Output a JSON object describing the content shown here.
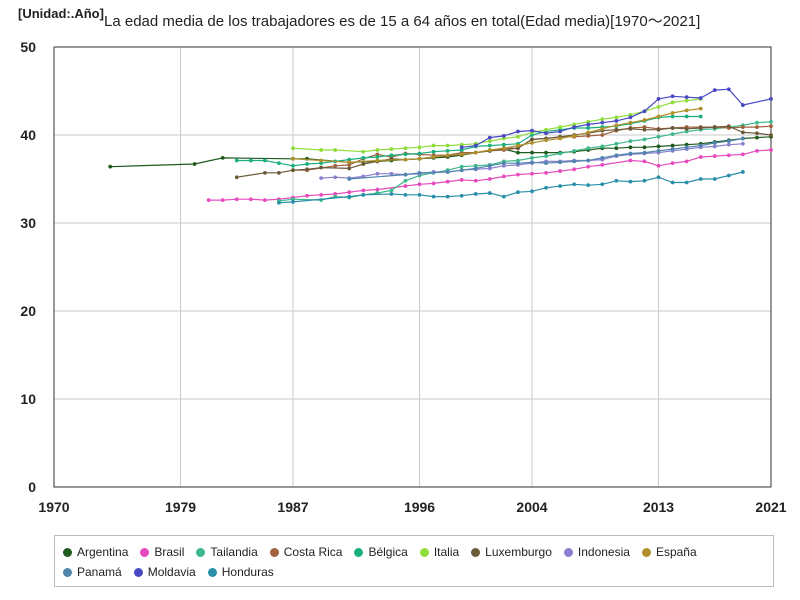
{
  "chart_data": {
    "type": "line",
    "title": "La edad media de los trabajadores es de 15 a 64 años en total(Edad media)[1970～2021]",
    "unit_label": "[Unidad:.Año]",
    "xlabel": "",
    "ylabel": "",
    "xlim": [
      1970,
      2021
    ],
    "ylim": [
      0,
      50
    ],
    "x_ticks": [
      "1970",
      "1979",
      "1987",
      "1996",
      "2004",
      "2013",
      "2021"
    ],
    "y_ticks": [
      "0",
      "10",
      "20",
      "30",
      "40",
      "50"
    ],
    "grid": true,
    "legend_position": "bottom",
    "series": [
      {
        "name": "Argentina",
        "color": "#1f5a1f",
        "x": [
          1974,
          1980,
          1982,
          1987,
          1988,
          1991,
          1993,
          1994,
          1996,
          1997,
          1998,
          1999,
          2000,
          2001,
          2002,
          2003,
          2004,
          2005,
          2006,
          2007,
          2008,
          2009,
          2010,
          2011,
          2012,
          2013,
          2014,
          2015,
          2016,
          2017,
          2018,
          2019,
          2020,
          2021
        ],
        "y": [
          36.4,
          36.7,
          37.4,
          37.3,
          37.3,
          36.9,
          37.0,
          37.1,
          37.3,
          37.4,
          37.5,
          37.7,
          38.0,
          38.2,
          38.4,
          38.0,
          38.0,
          38.0,
          38.0,
          38.1,
          38.3,
          38.5,
          38.5,
          38.6,
          38.6,
          38.7,
          38.8,
          38.9,
          39.0,
          39.2,
          39.4,
          39.6,
          39.7,
          39.8
        ]
      },
      {
        "name": "Brasil",
        "color": "#e64bbd",
        "x": [
          1981,
          1982,
          1983,
          1984,
          1985,
          1986,
          1987,
          1988,
          1989,
          1990,
          1991,
          1992,
          1993,
          1995,
          1996,
          1997,
          1998,
          1999,
          2000,
          2001,
          2002,
          2003,
          2004,
          2005,
          2006,
          2007,
          2008,
          2009,
          2011,
          2012,
          2013,
          2014,
          2015,
          2016,
          2017,
          2018,
          2019,
          2020,
          2021
        ],
        "y": [
          32.6,
          32.6,
          32.7,
          32.7,
          32.6,
          32.7,
          32.9,
          33.1,
          33.2,
          33.3,
          33.5,
          33.7,
          33.8,
          34.2,
          34.4,
          34.5,
          34.7,
          34.9,
          34.8,
          35.0,
          35.3,
          35.5,
          35.6,
          35.7,
          35.9,
          36.1,
          36.4,
          36.6,
          37.1,
          37.0,
          36.5,
          36.8,
          37.0,
          37.5,
          37.6,
          37.7,
          37.8,
          38.2,
          38.3
        ]
      },
      {
        "name": "Tailandia",
        "color": "#3cb88a",
        "x": [
          1986,
          1987,
          1989,
          1990,
          1991,
          1992,
          1993,
          1994,
          1995,
          1996,
          1997,
          1998,
          1999,
          2000,
          2001,
          2002,
          2003,
          2004,
          2005,
          2006,
          2007,
          2008,
          2009,
          2010,
          2011,
          2012,
          2013,
          2014,
          2015,
          2016,
          2017,
          2018,
          2019,
          2020,
          2021
        ],
        "y": [
          32.5,
          32.7,
          32.6,
          33.0,
          32.9,
          33.2,
          33.4,
          33.7,
          34.8,
          35.4,
          35.7,
          36.0,
          36.4,
          36.5,
          36.6,
          37.0,
          37.1,
          37.4,
          37.6,
          37.9,
          38.2,
          38.5,
          38.7,
          39.0,
          39.3,
          39.5,
          39.8,
          40.1,
          40.4,
          40.6,
          40.7,
          40.9,
          41.1,
          41.4,
          41.5
        ]
      },
      {
        "name": "Costa Rica",
        "color": "#a0623e",
        "x": [
          1987,
          1988,
          1990,
          1991,
          1992,
          1993,
          1994,
          1995,
          1996,
          1997,
          1998,
          1999,
          2000,
          2001,
          2002,
          2003,
          2004,
          2005,
          2006,
          2007,
          2008,
          2009,
          2010,
          2011,
          2012,
          2013,
          2014,
          2015,
          2016,
          2017,
          2018,
          2019,
          2020,
          2021
        ],
        "y": [
          36.0,
          36.0,
          36.5,
          36.6,
          37.3,
          37.8,
          37.5,
          37.9,
          37.8,
          37.7,
          37.7,
          38.0,
          38.0,
          38.2,
          38.3,
          38.5,
          39.5,
          39.6,
          39.8,
          39.8,
          39.9,
          40.0,
          40.5,
          40.8,
          40.9,
          40.7,
          40.8,
          40.9,
          40.9,
          40.9,
          40.8,
          40.9,
          40.9,
          41.0
        ]
      },
      {
        "name": "Bélgica",
        "color": "#1aaf7e",
        "x": [
          1983,
          1984,
          1985,
          1986,
          1987,
          1988,
          1989,
          1990,
          1991,
          1992,
          1993,
          1994,
          1995,
          1996,
          1997,
          1998,
          1999,
          2000,
          2001,
          2002,
          2003,
          2004,
          2005,
          2006,
          2007,
          2008,
          2009,
          2010,
          2011,
          2012,
          2013,
          2014,
          2015,
          2016
        ],
        "y": [
          37.1,
          37.1,
          37.1,
          36.8,
          36.5,
          36.7,
          36.8,
          37.0,
          37.2,
          37.4,
          37.5,
          37.7,
          37.8,
          37.9,
          38.1,
          38.2,
          38.3,
          38.7,
          38.8,
          38.9,
          39.0,
          40.0,
          40.4,
          40.6,
          40.8,
          40.8,
          40.9,
          41.0,
          41.3,
          41.6,
          42.0,
          42.1,
          42.1,
          42.1
        ]
      },
      {
        "name": "Italia",
        "color": "#8fdd3b",
        "x": [
          1987,
          1989,
          1990,
          1992,
          1993,
          1994,
          1995,
          1996,
          1997,
          1998,
          1999,
          2000,
          2001,
          2002,
          2003,
          2004,
          2005,
          2006,
          2007,
          2008,
          2009,
          2010,
          2011,
          2012,
          2013,
          2014,
          2015,
          2016
        ],
        "y": [
          38.5,
          38.3,
          38.3,
          38.1,
          38.3,
          38.4,
          38.5,
          38.6,
          38.8,
          38.8,
          38.9,
          39.0,
          39.3,
          39.6,
          39.8,
          40.3,
          40.6,
          40.9,
          41.2,
          41.5,
          41.8,
          42.0,
          42.3,
          42.7,
          43.2,
          43.7,
          43.9,
          44.1
        ]
      },
      {
        "name": "Luxemburgo",
        "color": "#6b5a3a",
        "x": [
          1983,
          1985,
          1986,
          1987,
          1988,
          1989,
          1991,
          1992,
          1993,
          1994,
          1995,
          1996,
          1997,
          1998,
          1999,
          2000,
          2001,
          2002,
          2003,
          2004,
          2005,
          2006,
          2007,
          2008,
          2009,
          2010,
          2011,
          2012,
          2013,
          2014,
          2015,
          2016,
          2017,
          2018,
          2019,
          2020,
          2021
        ],
        "y": [
          35.2,
          35.7,
          35.7,
          36.0,
          36.1,
          36.3,
          36.2,
          36.7,
          37.0,
          37.3,
          37.2,
          37.3,
          37.5,
          37.6,
          37.8,
          38.0,
          38.2,
          38.5,
          38.5,
          39.5,
          39.6,
          39.8,
          40.0,
          40.2,
          40.5,
          40.6,
          40.7,
          40.6,
          40.6,
          40.8,
          40.7,
          40.8,
          40.9,
          41.0,
          40.3,
          40.2,
          40.0
        ]
      },
      {
        "name": "Indonesia",
        "color": "#8b80d0",
        "x": [
          1989,
          1990,
          1991,
          1992,
          1993,
          1994,
          1995,
          1996,
          1997,
          1998,
          1999,
          2000,
          2001,
          2002,
          2003,
          2004,
          2005,
          2006,
          2007,
          2008,
          2009,
          2010,
          2011,
          2012,
          2013,
          2014,
          2015,
          2016,
          2017,
          2018,
          2019
        ],
        "y": [
          35.1,
          35.2,
          35.1,
          35.3,
          35.6,
          35.6,
          35.5,
          35.6,
          35.8,
          35.8,
          36.0,
          36.1,
          36.2,
          36.5,
          36.6,
          36.8,
          37.0,
          37.0,
          37.1,
          37.1,
          37.2,
          37.6,
          37.8,
          37.9,
          38.0,
          38.2,
          38.4,
          38.6,
          38.7,
          38.9,
          39.0
        ]
      },
      {
        "name": "España",
        "color": "#b0902a",
        "x": [
          1987,
          1989,
          1991,
          1993,
          1995,
          1996,
          1997,
          1998,
          1999,
          2000,
          2001,
          2002,
          2003,
          2004,
          2005,
          2006,
          2007,
          2008,
          2009,
          2010,
          2011,
          2012,
          2013,
          2014,
          2015,
          2016
        ],
        "y": [
          37.3,
          37.1,
          36.9,
          37.1,
          37.2,
          37.3,
          37.5,
          37.7,
          37.8,
          38.0,
          38.3,
          38.5,
          38.8,
          39.1,
          39.4,
          39.6,
          39.9,
          40.3,
          40.7,
          41.1,
          41.4,
          41.7,
          42.1,
          42.5,
          42.8,
          43.0
        ]
      },
      {
        "name": "Panamá",
        "color": "#4f84ad",
        "x": [
          1991,
          1995,
          1996,
          1998,
          1999,
          2000,
          2001,
          2002,
          2003,
          2004,
          2005,
          2006,
          2007,
          2008,
          2009,
          2010,
          2011,
          2012,
          2013,
          2014,
          2015,
          2016,
          2017,
          2018,
          2019
        ],
        "y": [
          35.0,
          35.5,
          35.7,
          35.8,
          36.0,
          36.2,
          36.5,
          36.8,
          36.8,
          36.9,
          36.8,
          36.9,
          37.0,
          37.1,
          37.4,
          37.7,
          37.9,
          38.0,
          38.2,
          38.4,
          38.6,
          38.8,
          39.1,
          39.3,
          39.6
        ]
      },
      {
        "name": "Moldavia",
        "color": "#4848c4",
        "x": [
          1999,
          2000,
          2001,
          2002,
          2003,
          2004,
          2005,
          2006,
          2007,
          2008,
          2009,
          2010,
          2011,
          2012,
          2013,
          2014,
          2015,
          2016,
          2017,
          2018,
          2019,
          2021
        ],
        "y": [
          38.6,
          38.8,
          39.7,
          39.9,
          40.4,
          40.5,
          40.2,
          40.4,
          40.9,
          41.2,
          41.4,
          41.6,
          42.0,
          42.7,
          44.1,
          44.4,
          44.3,
          44.2,
          45.1,
          45.2,
          43.4,
          44.1
        ]
      },
      {
        "name": "Honduras",
        "color": "#2a8fa8",
        "x": [
          1986,
          1987,
          1991,
          1992,
          1994,
          1995,
          1996,
          1997,
          1998,
          1999,
          2000,
          2001,
          2002,
          2003,
          2004,
          2005,
          2006,
          2007,
          2008,
          2009,
          2010,
          2011,
          2012,
          2013,
          2014,
          2015,
          2016,
          2017,
          2018,
          2019
        ],
        "y": [
          32.3,
          32.4,
          33.0,
          33.2,
          33.3,
          33.2,
          33.2,
          33.0,
          33.0,
          33.1,
          33.3,
          33.4,
          33.0,
          33.5,
          33.6,
          34.0,
          34.2,
          34.4,
          34.3,
          34.4,
          34.8,
          34.7,
          34.8,
          35.2,
          34.6,
          34.6,
          35.0,
          35.0,
          35.4,
          35.8
        ]
      }
    ]
  }
}
